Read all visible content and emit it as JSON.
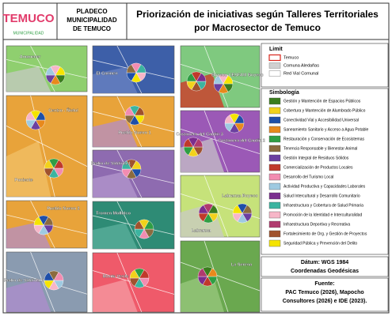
{
  "header": {
    "logo": "TEMUCO",
    "logo_sub": "MUNICIPALIDAD",
    "org": [
      "PLADECO",
      "MUNICIPALIDAD",
      "DE TEMUCO"
    ],
    "title": [
      "Priorización de iniciativas según Talleres Territoriales",
      "por Macrosector de Temuco"
    ]
  },
  "panels": [
    {
      "labels": [
        "Amanecer"
      ]
    },
    {
      "labels": [
        "Centro - Ñielol",
        "Poniente"
      ]
    },
    {
      "labels": [
        "Pueblo Nuevo 2"
      ]
    },
    {
      "labels": [
        "Pedro de Valdivia 2"
      ]
    },
    {
      "labels": [
        "El Carmen"
      ]
    },
    {
      "labels": [
        "Pueblo Nuevo 1"
      ]
    },
    {
      "labels": [
        "Pedro de Valdivia 1"
      ]
    },
    {
      "labels": [
        "Tromen Mollulco"
      ]
    },
    {
      "labels": [
        "Monte Verde"
      ]
    },
    {
      "labels": [
        "Boyeco CESFAM Boyeco"
      ]
    },
    {
      "labels": [
        "Costanera del Cautín 3",
        "Costanera del Cautín 2"
      ]
    },
    {
      "labels": [
        "Labranza Boyeco",
        "Labranza"
      ]
    },
    {
      "labels": [
        "La Serena"
      ]
    }
  ],
  "legend": {
    "limit_title": "Limit",
    "limits": [
      {
        "label": "Temuco",
        "color": "#d9261c"
      },
      {
        "label": "Comuna Aledañas",
        "color": "#d0d0d0"
      },
      {
        "label": "Red Vial Comunal",
        "color": "#ffffff"
      }
    ],
    "symbol_title": "Simbología",
    "items": [
      {
        "label": "Gestión y Mantención de Espacios Públicos",
        "color": "#3a7d1e"
      },
      {
        "label": "Cobertura y Mantención de Alumbrado Público",
        "color": "#f2d21b"
      },
      {
        "label": "Conectividad Vial y Accesibilidad Universal",
        "color": "#1f4fa8"
      },
      {
        "label": "Saneamiento Sanitario y Acceso a Agua Potable",
        "color": "#e8891c"
      },
      {
        "label": "Restauración y Conservación de Ecosistemas",
        "color": "#2f9e44"
      },
      {
        "label": "Tenencia Responsable y Bienestar Animal",
        "color": "#8c6b3f"
      },
      {
        "label": "Gestión Integral de Residuos Sólidos",
        "color": "#6b3fa0"
      },
      {
        "label": "Comercialización de Productos Locales",
        "color": "#c0392b"
      },
      {
        "label": "Desarrollo del Turismo Local",
        "color": "#f28cb1"
      },
      {
        "label": "Actividad Productiva y Capacidades Laborales",
        "color": "#9ecae1"
      },
      {
        "label": "Salud Intercultural y Desarrollo Comunitario",
        "color": "#7b2d8e"
      },
      {
        "label": "Infraestructura y Cobertura de Salud Primaria",
        "color": "#3cb4a0"
      },
      {
        "label": "Promoción de la Identidad e Interculturalidad",
        "color": "#f7b6c8"
      },
      {
        "label": "Infraestructura Deportiva y Recreativa",
        "color": "#b03a6e"
      },
      {
        "label": "Fortalecimiento de Org. y Gestión de Proyectos",
        "color": "#a0522d"
      },
      {
        "label": "Seguridad Pública y Prevención del Delito",
        "color": "#f5e400"
      }
    ]
  },
  "datum": [
    "Dátum: WGS 1984",
    "Coordenadas Geodésicas"
  ],
  "source": [
    "Fuente:",
    "PAC Temuco (2026), Mapocho",
    "Consultores (2026) e IDE (2023)."
  ]
}
